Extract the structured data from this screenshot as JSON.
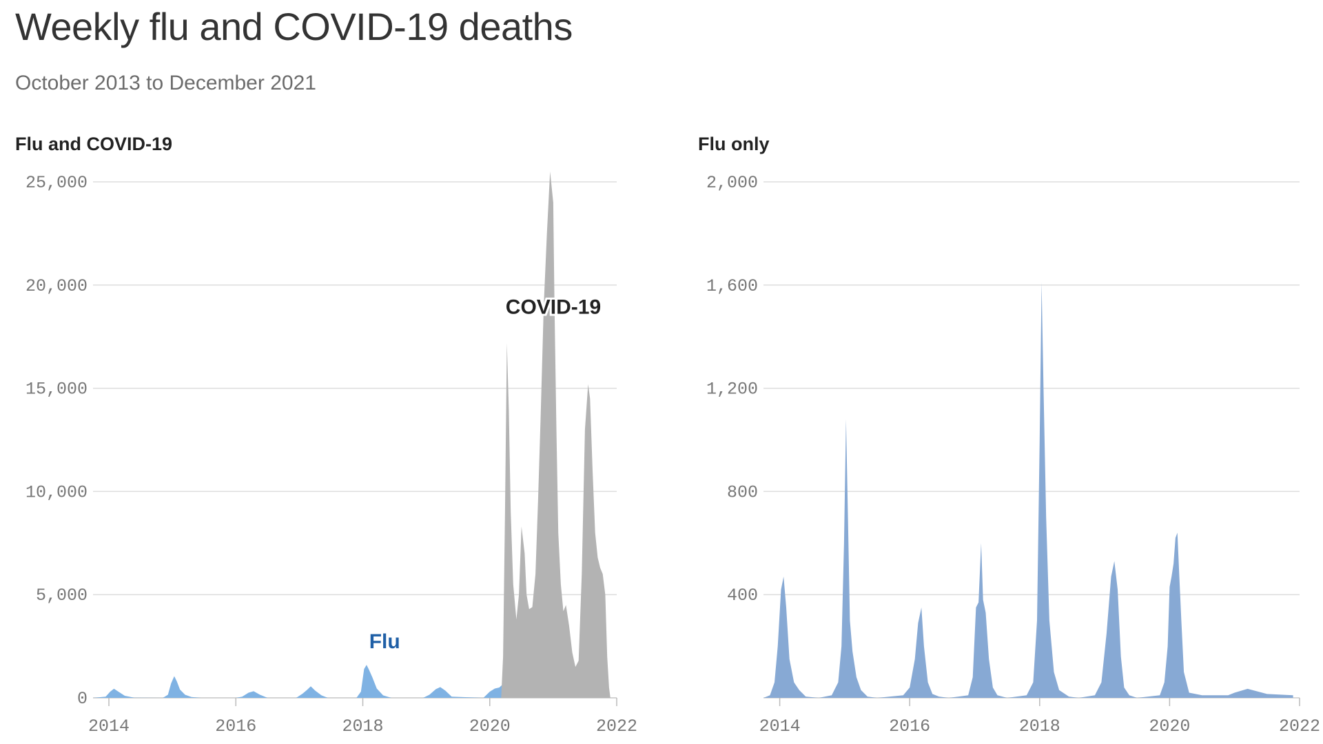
{
  "title": "Weekly flu and COVID-19 deaths",
  "subtitle": "October 2013 to December 2021",
  "colors": {
    "flu": "#7fb2e3",
    "flu_only": "#87a9d4",
    "covid": "#b3b3b3",
    "flu_label": "#1f5fa6",
    "grid": "#dddddd"
  },
  "chart_data": [
    {
      "type": "area",
      "panel_title": "Flu and COVID-19",
      "xlabel": "",
      "ylabel": "",
      "xlim": [
        2013.75,
        2022.0
      ],
      "ylim": [
        0,
        25000
      ],
      "x_ticks": [
        2014,
        2016,
        2018,
        2020,
        2022
      ],
      "x_tick_labels": [
        "2014",
        "2016",
        "2018",
        "2020",
        "2022"
      ],
      "y_ticks": [
        0,
        5000,
        10000,
        15000,
        20000,
        25000
      ],
      "y_tick_labels": [
        "0",
        "5,000",
        "10,000",
        "15,000",
        "20,000",
        "25,000"
      ],
      "grid": true,
      "annotations": [
        {
          "text": "COVID-19",
          "series": "COVID-19",
          "x": 2020.25,
          "y": 18600
        },
        {
          "text": "Flu",
          "series": "Flu",
          "x": 2018.1,
          "y": 2400
        }
      ],
      "series": [
        {
          "name": "Flu",
          "x": [
            2013.75,
            2013.95,
            2014.02,
            2014.08,
            2014.15,
            2014.25,
            2014.4,
            2014.85,
            2014.93,
            2014.98,
            2015.03,
            2015.07,
            2015.12,
            2015.2,
            2015.3,
            2015.45,
            2016.0,
            2016.1,
            2016.2,
            2016.28,
            2016.38,
            2016.5,
            2016.95,
            2017.05,
            2017.12,
            2017.18,
            2017.25,
            2017.35,
            2017.45,
            2017.9,
            2017.97,
            2018.02,
            2018.06,
            2018.1,
            2018.15,
            2018.22,
            2018.32,
            2018.45,
            2018.95,
            2019.05,
            2019.15,
            2019.22,
            2019.3,
            2019.4,
            2019.9,
            2020.0,
            2020.08,
            2020.15,
            2020.2,
            2020.25,
            2020.3,
            2020.4,
            2020.6,
            2021.0,
            2021.5,
            2021.9
          ],
          "y": [
            0,
            60,
            300,
            440,
            300,
            100,
            10,
            0,
            150,
            700,
            1050,
            800,
            400,
            150,
            40,
            0,
            0,
            60,
            250,
            320,
            150,
            0,
            0,
            200,
            380,
            560,
            350,
            120,
            0,
            0,
            300,
            1400,
            1600,
            1350,
            1000,
            450,
            120,
            0,
            0,
            150,
            420,
            520,
            350,
            60,
            0,
            300,
            450,
            500,
            640,
            480,
            100,
            20,
            10,
            15,
            10,
            0
          ]
        },
        {
          "name": "COVID-19",
          "x": [
            2020.18,
            2020.21,
            2020.24,
            2020.27,
            2020.3,
            2020.33,
            2020.37,
            2020.42,
            2020.46,
            2020.5,
            2020.55,
            2020.58,
            2020.62,
            2020.67,
            2020.72,
            2020.76,
            2020.8,
            2020.85,
            2020.9,
            2020.95,
            2021.0,
            2021.02,
            2021.05,
            2021.08,
            2021.12,
            2021.16,
            2021.2,
            2021.25,
            2021.3,
            2021.35,
            2021.4,
            2021.45,
            2021.5,
            2021.55,
            2021.58,
            2021.62,
            2021.66,
            2021.7,
            2021.74,
            2021.78,
            2021.82,
            2021.85,
            2021.88,
            2021.9
          ],
          "y": [
            0,
            2000,
            9000,
            17200,
            14000,
            9000,
            5500,
            3800,
            5000,
            8300,
            7000,
            5000,
            4300,
            4400,
            6000,
            9500,
            13500,
            19000,
            22500,
            25500,
            24000,
            19000,
            13000,
            8000,
            5500,
            4200,
            4500,
            3500,
            2200,
            1500,
            1800,
            6000,
            13000,
            15200,
            14500,
            11000,
            8000,
            6800,
            6300,
            6000,
            5000,
            2000,
            500,
            0
          ]
        }
      ]
    },
    {
      "type": "area",
      "panel_title": "Flu only",
      "xlabel": "",
      "ylabel": "",
      "xlim": [
        2013.75,
        2022.0
      ],
      "ylim": [
        0,
        2000
      ],
      "x_ticks": [
        2014,
        2016,
        2018,
        2020,
        2022
      ],
      "x_tick_labels": [
        "2014",
        "2016",
        "2018",
        "2020",
        "2022"
      ],
      "y_ticks": [
        400,
        800,
        1200,
        1600,
        2000
      ],
      "y_tick_labels": [
        "400",
        "800",
        "1,200",
        "1,600",
        "2,000"
      ],
      "grid": true,
      "series": [
        {
          "x": [
            2013.75,
            2013.85,
            2013.92,
            2013.97,
            2014.02,
            2014.06,
            2014.1,
            2014.15,
            2014.22,
            2014.3,
            2014.4,
            2014.6,
            2014.8,
            2014.9,
            2014.95,
            2014.99,
            2015.02,
            2015.05,
            2015.08,
            2015.12,
            2015.18,
            2015.25,
            2015.35,
            2015.5,
            2015.9,
            2016.0,
            2016.08,
            2016.13,
            2016.18,
            2016.22,
            2016.28,
            2016.35,
            2016.45,
            2016.6,
            2016.9,
            2016.97,
            2017.02,
            2017.06,
            2017.1,
            2017.13,
            2017.17,
            2017.22,
            2017.28,
            2017.35,
            2017.5,
            2017.8,
            2017.9,
            2017.96,
            2018.0,
            2018.03,
            2018.06,
            2018.1,
            2018.15,
            2018.22,
            2018.3,
            2018.45,
            2018.6,
            2018.85,
            2018.95,
            2019.03,
            2019.1,
            2019.15,
            2019.2,
            2019.25,
            2019.3,
            2019.38,
            2019.5,
            2019.85,
            2019.92,
            2019.97,
            2020.0,
            2020.03,
            2020.06,
            2020.09,
            2020.12,
            2020.15,
            2020.18,
            2020.22,
            2020.3,
            2020.5,
            2020.9,
            2021.0,
            2021.2,
            2021.5,
            2021.9
          ],
          "y": [
            0,
            10,
            60,
            200,
            420,
            470,
            350,
            150,
            60,
            30,
            5,
            0,
            10,
            60,
            200,
            600,
            1080,
            700,
            300,
            180,
            80,
            30,
            5,
            0,
            10,
            40,
            150,
            290,
            350,
            200,
            60,
            15,
            5,
            0,
            10,
            80,
            350,
            370,
            600,
            380,
            330,
            150,
            40,
            10,
            0,
            10,
            60,
            300,
            1000,
            1610,
            1200,
            700,
            300,
            100,
            30,
            5,
            0,
            10,
            60,
            250,
            470,
            530,
            420,
            160,
            40,
            10,
            0,
            10,
            60,
            200,
            430,
            470,
            520,
            620,
            640,
            470,
            300,
            100,
            20,
            10,
            10,
            20,
            35,
            15,
            10
          ]
        }
      ]
    }
  ]
}
